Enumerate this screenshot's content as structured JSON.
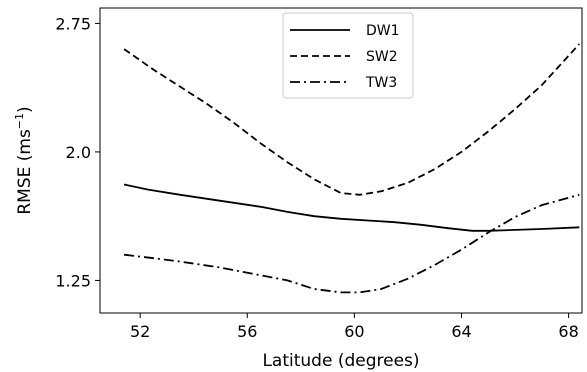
{
  "chart_data": {
    "type": "line",
    "xlabel": "Latitude (degrees)",
    "ylabel_main": "RMSE (ms",
    "ylabel_sup": "−1",
    "ylabel_close": ")",
    "xlim": [
      50.5,
      68.5
    ],
    "ylim": [
      1.06,
      2.84
    ],
    "xticks": [
      52,
      56,
      60,
      64,
      68
    ],
    "xtick_labels": [
      "52",
      "56",
      "60",
      "64",
      "68"
    ],
    "yticks": [
      1.25,
      2.0,
      2.75
    ],
    "ytick_labels": [
      "1.25",
      "2.0",
      "2.75"
    ],
    "legend_position": "top-center",
    "series": [
      {
        "name": "DW1",
        "style": "solid",
        "x": [
          51.4,
          52.3,
          53.5,
          55.0,
          56.5,
          57.5,
          58.5,
          59.5,
          60.5,
          61.5,
          62.5,
          63.5,
          64.4,
          65.0,
          66.0,
          67.0,
          68.4
        ],
        "y": [
          1.81,
          1.78,
          1.75,
          1.715,
          1.68,
          1.65,
          1.625,
          1.61,
          1.6,
          1.59,
          1.575,
          1.555,
          1.54,
          1.54,
          1.545,
          1.55,
          1.56
        ]
      },
      {
        "name": "SW2",
        "style": "dashed",
        "x": [
          51.4,
          52.5,
          53.5,
          54.5,
          55.5,
          56.5,
          57.5,
          58.5,
          59.5,
          60.2,
          61.0,
          62.0,
          63.0,
          64.0,
          65.0,
          66.0,
          67.0,
          68.4
        ],
        "y": [
          2.6,
          2.48,
          2.38,
          2.28,
          2.17,
          2.05,
          1.94,
          1.84,
          1.76,
          1.75,
          1.77,
          1.82,
          1.9,
          2.0,
          2.12,
          2.25,
          2.39,
          2.63
        ]
      },
      {
        "name": "TW3",
        "style": "dashdot",
        "x": [
          51.4,
          52.5,
          53.5,
          55.0,
          56.5,
          57.5,
          58.5,
          59.5,
          60.2,
          61.0,
          62.0,
          63.0,
          64.0,
          65.0,
          66.0,
          67.0,
          68.4
        ],
        "y": [
          1.4,
          1.38,
          1.36,
          1.325,
          1.28,
          1.25,
          1.2,
          1.18,
          1.18,
          1.2,
          1.26,
          1.34,
          1.43,
          1.53,
          1.62,
          1.69,
          1.75
        ]
      }
    ]
  }
}
